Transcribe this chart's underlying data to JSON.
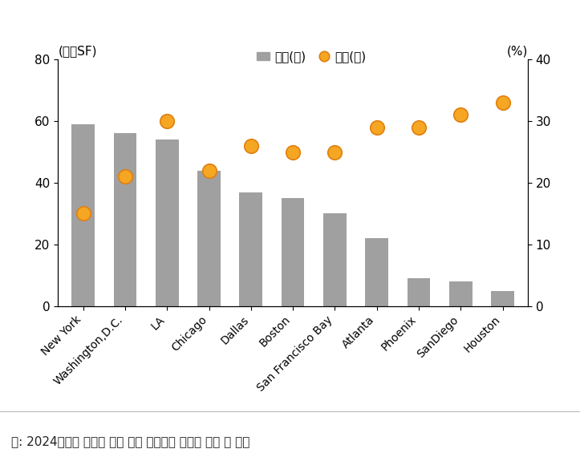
{
  "categories": [
    "New York",
    "Washington,D.C.",
    "LA",
    "Chicago",
    "Dallas",
    "Boston",
    "San Francisco Bay",
    "Atlanta",
    "Phoenix",
    "SanDiego",
    "Houston"
  ],
  "bar_values": [
    59,
    56,
    54,
    44,
    37,
    35,
    30,
    22,
    9,
    8,
    5
  ],
  "dot_values": [
    15,
    21,
    30,
    22,
    26,
    25,
    25,
    29,
    29,
    31,
    33
  ],
  "bar_color": "#a0a0a0",
  "dot_color": "#f5a623",
  "dot_edge_color": "#e08010",
  "left_label": "(백만SF)",
  "right_label": "(%)",
  "legend_bar": "면적(좌)",
  "legend_dot": "비율(우)",
  "left_ylim": [
    0,
    80
  ],
  "right_ylim": [
    0,
    40
  ],
  "left_yticks": [
    0,
    20,
    40,
    60,
    80
  ],
  "right_yticks": [
    0,
    10,
    20,
    30,
    40
  ],
  "footnote": "주: 2024년까지 임대차 계약 만기 도래하는 오피스 면적 및 비율",
  "background_color": "#ffffff",
  "bar_width": 0.55
}
